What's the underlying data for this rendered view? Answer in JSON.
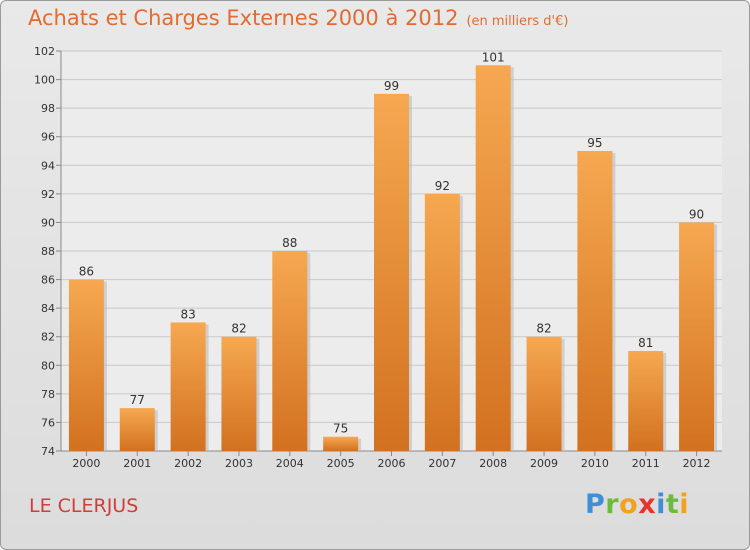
{
  "header": {
    "title": "Achats et Charges Externes 2000 à 2012",
    "unit": "(en milliers d'€)"
  },
  "footer": {
    "commune": "LE CLERJUS",
    "logo_letters": [
      {
        "ch": "P",
        "color": "#3f8fd6"
      },
      {
        "ch": "r",
        "color": "#6cbb3c"
      },
      {
        "ch": "o",
        "color": "#f2a21b"
      },
      {
        "ch": "x",
        "color": "#e5342b"
      },
      {
        "ch": "i",
        "color": "#3f8fd6"
      },
      {
        "ch": "t",
        "color": "#6cbb3c"
      },
      {
        "ch": "i",
        "color": "#f2a21b"
      }
    ]
  },
  "chart_data": {
    "type": "bar",
    "title": "Achats et Charges Externes 2000 à 2012",
    "subtitle": "(en milliers d'€)",
    "xlabel": "",
    "ylabel": "",
    "categories": [
      "2000",
      "2001",
      "2002",
      "2003",
      "2004",
      "2005",
      "2006",
      "2007",
      "2008",
      "2009",
      "2010",
      "2011",
      "2012"
    ],
    "values": [
      86,
      77,
      83,
      82,
      88,
      75,
      99,
      92,
      101,
      82,
      95,
      81,
      90
    ],
    "ylim": [
      74,
      102
    ],
    "yticks": [
      74,
      76,
      78,
      80,
      82,
      84,
      86,
      88,
      90,
      92,
      94,
      96,
      98,
      100,
      102
    ],
    "grid": true,
    "bar_color_top": "#f6a851",
    "bar_color_bottom": "#d2711f"
  }
}
